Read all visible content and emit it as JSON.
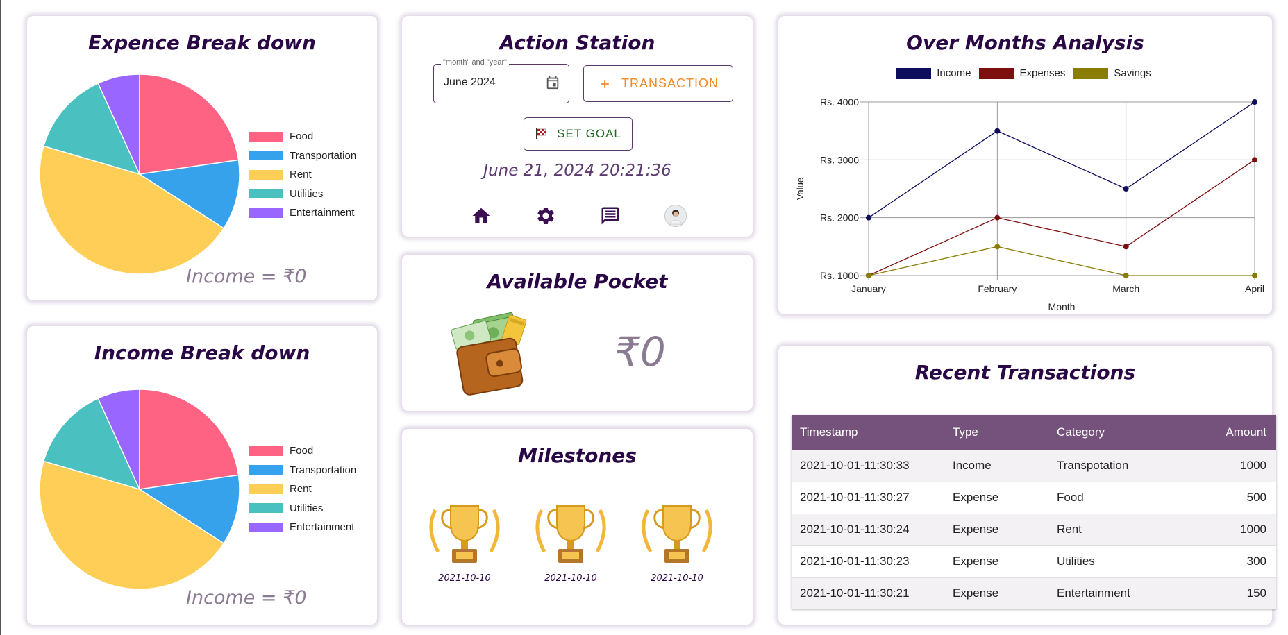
{
  "expense_breakdown": {
    "title": "Expence Break down",
    "income_label": "Income = ₹0",
    "chart_data": {
      "type": "pie",
      "categories": [
        "Food",
        "Transportation",
        "Rent",
        "Utilities",
        "Entertainment"
      ],
      "values": [
        1000,
        500,
        2000,
        600,
        300
      ],
      "colors": [
        "#ff6384",
        "#36a2eb",
        "#ffce56",
        "#4bc0c0",
        "#9966ff"
      ]
    }
  },
  "income_breakdown": {
    "title": "Income Break down",
    "income_label": "Income = ₹0",
    "chart_data": {
      "type": "pie",
      "categories": [
        "Food",
        "Transportation",
        "Rent",
        "Utilities",
        "Entertainment"
      ],
      "values": [
        1000,
        500,
        2000,
        600,
        300
      ],
      "colors": [
        "#ff6384",
        "#36a2eb",
        "#ffce56",
        "#4bc0c0",
        "#9966ff"
      ]
    }
  },
  "action_station": {
    "title": "Action Station",
    "date_field_legend": "\"month\" and \"year\"",
    "date_field_value": "June 2024",
    "transaction_label": "TRANSACTION",
    "set_goal_label": "SET GOAL",
    "datetime": "June 21, 2024 20:21:36",
    "nav": [
      "home-icon",
      "settings-icon",
      "messages-icon",
      "avatar"
    ]
  },
  "available_pocket": {
    "title": "Available Pocket",
    "amount": "₹0"
  },
  "milestones": {
    "title": "Milestones",
    "items": [
      {
        "date": "2021-10-10"
      },
      {
        "date": "2021-10-10"
      },
      {
        "date": "2021-10-10"
      }
    ]
  },
  "over_months": {
    "title": "Over Months Analysis",
    "chart_data": {
      "type": "line",
      "x": [
        "January",
        "February",
        "March",
        "April"
      ],
      "xlabel": "Month",
      "ylabel": "Value",
      "yticks": [
        "Rs. 1000",
        "Rs. 2000",
        "Rs. 3000",
        "Rs. 4000"
      ],
      "ylim": [
        1000,
        4000
      ],
      "grid": true,
      "legend": "top",
      "series": [
        {
          "name": "Income",
          "values": [
            2000,
            3500,
            2500,
            4000
          ],
          "color": "#0d0d5e"
        },
        {
          "name": "Expenses",
          "values": [
            1000,
            2000,
            1500,
            3000
          ],
          "color": "#7e0f0f"
        },
        {
          "name": "Savings",
          "values": [
            1000,
            1500,
            1000,
            1000
          ],
          "color": "#8a7d06"
        }
      ]
    }
  },
  "recent_transactions": {
    "title": "Recent Transactions",
    "columns": [
      "Timestamp",
      "Type",
      "Category",
      "Amount"
    ],
    "rows": [
      [
        "2021-10-01-11:30:33",
        "Income",
        "Transpotation",
        "1000"
      ],
      [
        "2021-10-01-11:30:27",
        "Expense",
        "Food",
        "500"
      ],
      [
        "2021-10-01-11:30:24",
        "Expense",
        "Rent",
        "1000"
      ],
      [
        "2021-10-01-11:30:23",
        "Expense",
        "Utilities",
        "300"
      ],
      [
        "2021-10-01-11:30:21",
        "Expense",
        "Entertainment",
        "150"
      ]
    ]
  }
}
